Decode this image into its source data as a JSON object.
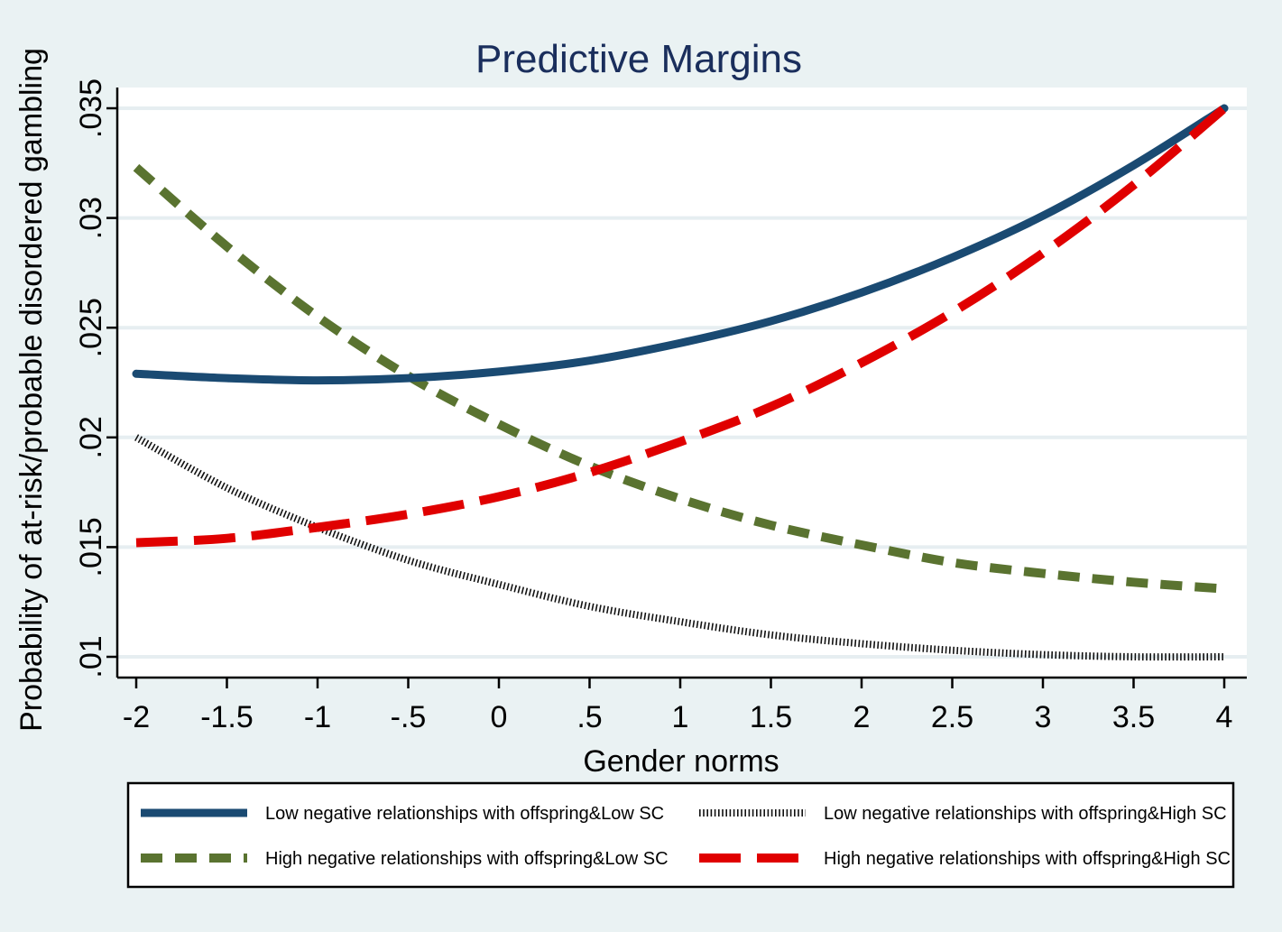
{
  "chart_data": {
    "type": "line",
    "title": "Predictive Margins",
    "xlabel": "Gender norms",
    "ylabel": "Probability of at-risk/probable disordered gambling",
    "x": [
      -2,
      -1.5,
      -1,
      -0.5,
      0,
      0.5,
      1,
      1.5,
      2,
      2.5,
      3,
      3.5,
      4
    ],
    "xticks": [
      -2,
      -1.5,
      -1,
      -0.5,
      0,
      0.5,
      1,
      1.5,
      2,
      2.5,
      3,
      3.5,
      4
    ],
    "xtick_labels": [
      "-2",
      "-1.5",
      "-1",
      "-.5",
      "0",
      ".5",
      "1",
      "1.5",
      "2",
      "2.5",
      "3",
      "3.5",
      "4"
    ],
    "yticks": [
      0.01,
      0.015,
      0.02,
      0.025,
      0.03,
      0.035
    ],
    "ytick_labels": [
      ".01",
      ".015",
      ".02",
      ".025",
      ".03",
      ".035"
    ],
    "xlim": [
      -2.1,
      4.1
    ],
    "ylim": [
      0.0091,
      0.036
    ],
    "grid": true,
    "legend_position": "bottom",
    "series": [
      {
        "name": "Low negative relationships with offspring&Low SC",
        "color": "#1a4a72",
        "style": "solid",
        "values": [
          0.0229,
          0.0227,
          0.0226,
          0.0227,
          0.023,
          0.0235,
          0.0243,
          0.0253,
          0.0266,
          0.0282,
          0.0301,
          0.0324,
          0.035
        ]
      },
      {
        "name": "Low negative relationships with offspring&High SC",
        "color": "#111111",
        "style": "hatched",
        "values": [
          0.02,
          0.0177,
          0.0159,
          0.0144,
          0.0133,
          0.0123,
          0.0116,
          0.011,
          0.0106,
          0.0103,
          0.0101,
          0.01,
          0.01
        ]
      },
      {
        "name": "High negative relationships with offspring&Low SC",
        "color": "#5a7330",
        "style": "short-dash",
        "values": [
          0.0323,
          0.0287,
          0.0255,
          0.0228,
          0.0206,
          0.0187,
          0.0172,
          0.016,
          0.0151,
          0.0143,
          0.0138,
          0.0134,
          0.0131
        ]
      },
      {
        "name": "High negative relationships with offspring&High SC",
        "color": "#e00000",
        "style": "long-dash",
        "values": [
          0.0152,
          0.0154,
          0.0159,
          0.0165,
          0.0173,
          0.0184,
          0.0198,
          0.0214,
          0.0234,
          0.0257,
          0.0284,
          0.0315,
          0.035
        ]
      }
    ]
  }
}
